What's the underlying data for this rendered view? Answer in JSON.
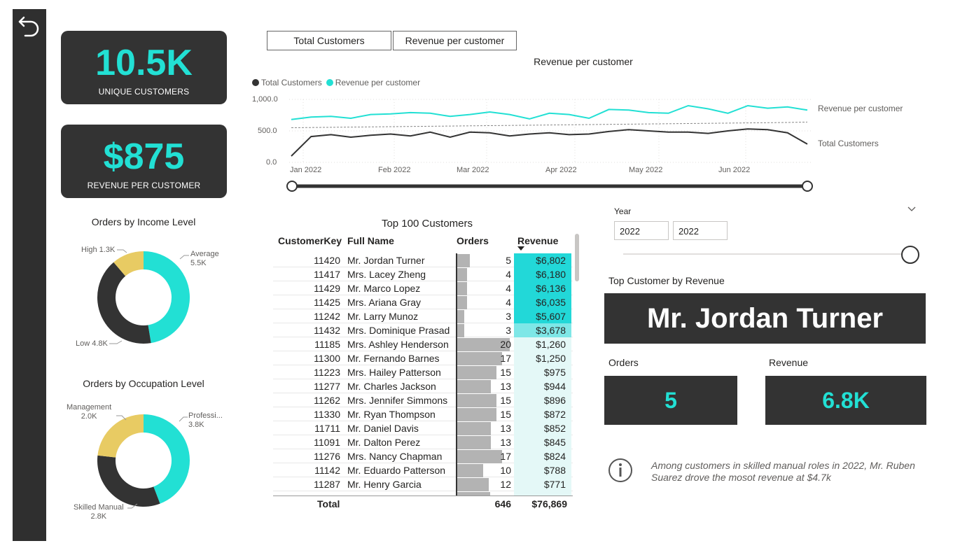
{
  "kpis": {
    "unique_customers": {
      "value": "10.5K",
      "label": "UNIQUE CUSTOMERS"
    },
    "revenue_per_customer": {
      "value": "$875",
      "label": "REVENUE PER CUSTOMER"
    }
  },
  "income_chart": {
    "title": "Orders by Income Level",
    "slices": [
      {
        "name": "Average",
        "label": "Average",
        "value_label": "5.5K",
        "value": 5.5,
        "color": "#22e0d4"
      },
      {
        "name": "Low",
        "label": "Low 4.8K",
        "value": 4.8,
        "color": "#333333"
      },
      {
        "name": "High",
        "label": "High 1.3K",
        "value": 1.3,
        "color": "#e8cb63"
      }
    ]
  },
  "occupation_chart": {
    "title": "Orders by Occupation Level",
    "slices": [
      {
        "name": "Professional",
        "label": "Professi...",
        "value_label": "3.8K",
        "value": 3.8,
        "color": "#22e0d4"
      },
      {
        "name": "Skilled Manual",
        "label": "Skilled Manual",
        "value_label": "2.8K",
        "value": 2.8,
        "color": "#333333"
      },
      {
        "name": "Management",
        "label": "Management",
        "value_label": "2.0K",
        "value": 2.0,
        "color": "#e8cb63"
      }
    ]
  },
  "toggles": {
    "total_customers": "Total Customers",
    "revenue_per_customer": "Revenue per customer"
  },
  "chart_data": {
    "type": "line",
    "title": "Revenue per customer",
    "legend": [
      "Total Customers",
      "Revenue per customer"
    ],
    "x_ticks": [
      "Jan 2022",
      "Feb 2022",
      "Mar 2022",
      "Apr 2022",
      "May 2022",
      "Jun 2022"
    ],
    "y_ticks": [
      "1,000.0",
      "500.0",
      "0.0"
    ],
    "ylim": [
      0,
      1000
    ],
    "series": [
      {
        "name": "Revenue per customer",
        "color": "#22e0d4",
        "values": [
          680,
          720,
          730,
          700,
          760,
          770,
          790,
          780,
          730,
          760,
          800,
          760,
          690,
          780,
          760,
          700,
          840,
          830,
          790,
          780,
          900,
          850,
          780,
          900,
          860,
          880,
          830
        ]
      },
      {
        "name": "Total Customers",
        "color": "#333333",
        "values": [
          100,
          410,
          440,
          400,
          430,
          450,
          420,
          480,
          400,
          480,
          470,
          420,
          450,
          470,
          440,
          450,
          490,
          520,
          500,
          480,
          480,
          460,
          500,
          530,
          520,
          470,
          290
        ]
      },
      {
        "name": "Trend",
        "color": "#888888",
        "dashed": true,
        "values": [
          550,
          553,
          557,
          560,
          563,
          567,
          570,
          573,
          577,
          580,
          583,
          587,
          590,
          593,
          597,
          600,
          603,
          607,
          610,
          613,
          617,
          620,
          623,
          627,
          630,
          633,
          640
        ]
      }
    ],
    "end_labels": {
      "upper": "Revenue per customer",
      "lower": "Total Customers"
    }
  },
  "table": {
    "title": "Top 100 Customers",
    "headers": {
      "key": "CustomerKey",
      "name": "Full Name",
      "orders": "Orders",
      "revenue": "Revenue"
    },
    "rows": [
      {
        "key": "11420",
        "name": "Mr. Jordan Turner",
        "orders": 5,
        "orders_label": "5",
        "revenue": 6802,
        "revenue_label": "$6,802"
      },
      {
        "key": "11417",
        "name": "Mrs. Lacey Zheng",
        "orders": 4,
        "orders_label": "4",
        "revenue": 6180,
        "revenue_label": "$6,180"
      },
      {
        "key": "11429",
        "name": "Mr. Marco Lopez",
        "orders": 4,
        "orders_label": "4",
        "revenue": 6136,
        "revenue_label": "$6,136"
      },
      {
        "key": "11425",
        "name": "Mrs. Ariana Gray",
        "orders": 4,
        "orders_label": "4",
        "revenue": 6035,
        "revenue_label": "$6,035"
      },
      {
        "key": "11242",
        "name": "Mr. Larry Munoz",
        "orders": 3,
        "orders_label": "3",
        "revenue": 5607,
        "revenue_label": "$5,607"
      },
      {
        "key": "11432",
        "name": "Mrs. Dominique Prasad",
        "orders": 3,
        "orders_label": "3",
        "revenue": 3678,
        "revenue_label": "$3,678"
      },
      {
        "key": "11185",
        "name": "Mrs. Ashley Henderson",
        "orders": 20,
        "orders_label": "20",
        "revenue": 1260,
        "revenue_label": "$1,260"
      },
      {
        "key": "11300",
        "name": "Mr. Fernando Barnes",
        "orders": 17,
        "orders_label": "17",
        "revenue": 1250,
        "revenue_label": "$1,250"
      },
      {
        "key": "11223",
        "name": "Mrs. Hailey Patterson",
        "orders": 15,
        "orders_label": "15",
        "revenue": 975,
        "revenue_label": "$975"
      },
      {
        "key": "11277",
        "name": "Mr. Charles Jackson",
        "orders": 13,
        "orders_label": "13",
        "revenue": 944,
        "revenue_label": "$944"
      },
      {
        "key": "11262",
        "name": "Mrs. Jennifer Simmons",
        "orders": 15,
        "orders_label": "15",
        "revenue": 896,
        "revenue_label": "$896"
      },
      {
        "key": "11330",
        "name": "Mr. Ryan Thompson",
        "orders": 15,
        "orders_label": "15",
        "revenue": 872,
        "revenue_label": "$872"
      },
      {
        "key": "11711",
        "name": "Mr. Daniel Davis",
        "orders": 13,
        "orders_label": "13",
        "revenue": 852,
        "revenue_label": "$852"
      },
      {
        "key": "11091",
        "name": "Mr. Dalton Perez",
        "orders": 13,
        "orders_label": "13",
        "revenue": 845,
        "revenue_label": "$845"
      },
      {
        "key": "11276",
        "name": "Mrs. Nancy Chapman",
        "orders": 17,
        "orders_label": "17",
        "revenue": 824,
        "revenue_label": "$824"
      },
      {
        "key": "11142",
        "name": "Mr. Eduardo Patterson",
        "orders": 10,
        "orders_label": "10",
        "revenue": 788,
        "revenue_label": "$788"
      },
      {
        "key": "11287",
        "name": "Mr. Henry Garcia",
        "orders": 12,
        "orders_label": "12",
        "revenue": 771,
        "revenue_label": "$771"
      }
    ],
    "total": {
      "label": "Total",
      "orders": "646",
      "revenue": "$76,869"
    }
  },
  "year_slicer": {
    "title": "Year",
    "start": "2022",
    "end": "2022"
  },
  "top_customer": {
    "section_title": "Top Customer by Revenue",
    "name": "Mr. Jordan Turner",
    "orders_label": "Orders",
    "orders_value": "5",
    "revenue_label": "Revenue",
    "revenue_value": "6.8K"
  },
  "insight": {
    "text": "Among customers in skilled manual roles in 2022, Mr. Ruben Suarez drove the mosot revenue at $4.7k"
  },
  "colors": {
    "accent": "#22e0d4",
    "dark": "#333333",
    "gold": "#e8cb63",
    "bar": "#b3b3b3"
  }
}
